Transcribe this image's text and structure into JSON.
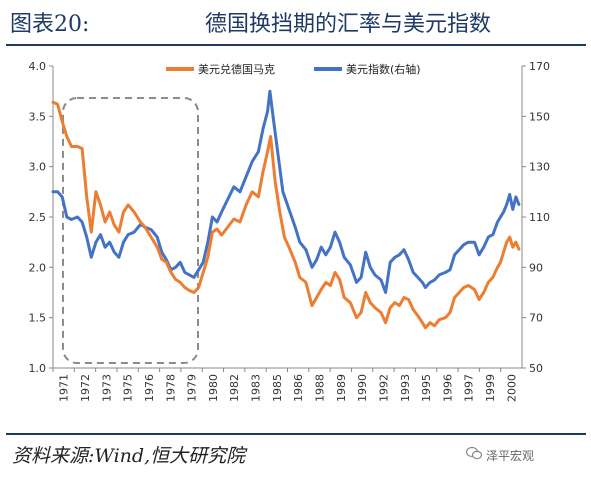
{
  "header": {
    "figure_no": "图表20:",
    "title": "德国换挡期的汇率与美元指数"
  },
  "footer": {
    "source": "资料来源:Wind,恒大研究院",
    "brand": "泽平宏观",
    "brand_icon": "wechat-bubble-icon"
  },
  "chart_data": {
    "type": "line",
    "title": "德国换挡期的汇率与美元指数",
    "x_categories": [
      "1971",
      "1972",
      "1973",
      "1975",
      "1976",
      "1978",
      "1979",
      "1980",
      "1982",
      "1983",
      "1985",
      "1986",
      "1988",
      "1989",
      "1990",
      "1992",
      "1993",
      "1995",
      "1996",
      "1997",
      "1999",
      "2000"
    ],
    "left_axis": {
      "min": 1.0,
      "max": 4.0,
      "ticks": [
        "1.0",
        "1.5",
        "2.0",
        "2.5",
        "3.0",
        "3.5",
        "4.0"
      ]
    },
    "right_axis": {
      "min": 50,
      "max": 170,
      "ticks": [
        "50",
        "70",
        "90",
        "110",
        "130",
        "150",
        "170"
      ]
    },
    "highlight": "dashed box around 1971–1979",
    "colors": {
      "usd_dem": "#ed7d31",
      "dxy": "#4472c4",
      "axis": "#888888",
      "box": "#8c8c8c"
    },
    "series": [
      {
        "name": "美元兑德国马克",
        "axis": "left",
        "points": [
          [
            1971.0,
            3.64
          ],
          [
            1971.3,
            3.62
          ],
          [
            1971.6,
            3.45
          ],
          [
            1971.9,
            3.3
          ],
          [
            1972.2,
            3.2
          ],
          [
            1972.6,
            3.2
          ],
          [
            1972.9,
            3.18
          ],
          [
            1973.2,
            2.7
          ],
          [
            1973.5,
            2.35
          ],
          [
            1973.8,
            2.75
          ],
          [
            1974.1,
            2.62
          ],
          [
            1974.4,
            2.45
          ],
          [
            1974.7,
            2.55
          ],
          [
            1975.0,
            2.42
          ],
          [
            1975.3,
            2.35
          ],
          [
            1975.6,
            2.55
          ],
          [
            1975.9,
            2.62
          ],
          [
            1976.3,
            2.55
          ],
          [
            1976.7,
            2.45
          ],
          [
            1977.0,
            2.4
          ],
          [
            1977.4,
            2.3
          ],
          [
            1977.8,
            2.2
          ],
          [
            1978.1,
            2.08
          ],
          [
            1978.4,
            2.05
          ],
          [
            1978.7,
            1.95
          ],
          [
            1979.0,
            1.88
          ],
          [
            1979.3,
            1.85
          ],
          [
            1979.6,
            1.8
          ],
          [
            1979.9,
            1.77
          ],
          [
            1980.2,
            1.75
          ],
          [
            1980.5,
            1.8
          ],
          [
            1980.8,
            1.95
          ],
          [
            1981.1,
            2.1
          ],
          [
            1981.4,
            2.35
          ],
          [
            1981.7,
            2.38
          ],
          [
            1982.0,
            2.32
          ],
          [
            1982.4,
            2.4
          ],
          [
            1982.8,
            2.48
          ],
          [
            1983.2,
            2.45
          ],
          [
            1983.6,
            2.62
          ],
          [
            1984.0,
            2.75
          ],
          [
            1984.4,
            2.7
          ],
          [
            1984.7,
            2.95
          ],
          [
            1985.0,
            3.15
          ],
          [
            1985.2,
            3.3
          ],
          [
            1985.5,
            2.85
          ],
          [
            1985.8,
            2.55
          ],
          [
            1986.1,
            2.3
          ],
          [
            1986.4,
            2.2
          ],
          [
            1986.8,
            2.05
          ],
          [
            1987.1,
            1.9
          ],
          [
            1987.5,
            1.85
          ],
          [
            1987.9,
            1.62
          ],
          [
            1988.2,
            1.7
          ],
          [
            1988.5,
            1.78
          ],
          [
            1988.8,
            1.85
          ],
          [
            1989.1,
            1.82
          ],
          [
            1989.4,
            1.95
          ],
          [
            1989.7,
            1.88
          ],
          [
            1990.0,
            1.7
          ],
          [
            1990.4,
            1.65
          ],
          [
            1990.8,
            1.5
          ],
          [
            1991.1,
            1.55
          ],
          [
            1991.4,
            1.75
          ],
          [
            1991.7,
            1.65
          ],
          [
            1992.0,
            1.6
          ],
          [
            1992.4,
            1.55
          ],
          [
            1992.7,
            1.45
          ],
          [
            1993.0,
            1.6
          ],
          [
            1993.3,
            1.65
          ],
          [
            1993.6,
            1.62
          ],
          [
            1993.9,
            1.7
          ],
          [
            1994.2,
            1.68
          ],
          [
            1994.5,
            1.58
          ],
          [
            1994.8,
            1.52
          ],
          [
            1995.1,
            1.45
          ],
          [
            1995.3,
            1.4
          ],
          [
            1995.6,
            1.45
          ],
          [
            1995.9,
            1.42
          ],
          [
            1996.2,
            1.48
          ],
          [
            1996.6,
            1.5
          ],
          [
            1996.9,
            1.55
          ],
          [
            1997.2,
            1.7
          ],
          [
            1997.5,
            1.75
          ],
          [
            1997.8,
            1.8
          ],
          [
            1998.1,
            1.82
          ],
          [
            1998.5,
            1.78
          ],
          [
            1998.8,
            1.68
          ],
          [
            1999.1,
            1.75
          ],
          [
            1999.4,
            1.85
          ],
          [
            1999.7,
            1.9
          ],
          [
            2000.0,
            2.0
          ],
          [
            2000.2,
            2.05
          ],
          [
            2000.4,
            2.15
          ],
          [
            2000.6,
            2.25
          ],
          [
            2000.8,
            2.3
          ],
          [
            2001.0,
            2.2
          ],
          [
            2001.2,
            2.25
          ],
          [
            2001.4,
            2.18
          ]
        ]
      },
      {
        "name": "美元指数(右轴)",
        "axis": "right",
        "points": [
          [
            1971.0,
            120
          ],
          [
            1971.3,
            120
          ],
          [
            1971.6,
            118
          ],
          [
            1971.9,
            110
          ],
          [
            1972.2,
            109
          ],
          [
            1972.6,
            110
          ],
          [
            1972.9,
            108
          ],
          [
            1973.2,
            102
          ],
          [
            1973.5,
            94
          ],
          [
            1973.8,
            100
          ],
          [
            1974.1,
            103
          ],
          [
            1974.4,
            98
          ],
          [
            1974.7,
            100
          ],
          [
            1975.0,
            96
          ],
          [
            1975.3,
            94
          ],
          [
            1975.6,
            100
          ],
          [
            1975.9,
            103
          ],
          [
            1976.3,
            104
          ],
          [
            1976.7,
            107
          ],
          [
            1977.0,
            106
          ],
          [
            1977.4,
            105
          ],
          [
            1977.8,
            102
          ],
          [
            1978.1,
            96
          ],
          [
            1978.4,
            93
          ],
          [
            1978.7,
            89
          ],
          [
            1979.0,
            90
          ],
          [
            1979.3,
            92
          ],
          [
            1979.6,
            88
          ],
          [
            1979.9,
            87
          ],
          [
            1980.2,
            86
          ],
          [
            1980.5,
            89
          ],
          [
            1980.8,
            92
          ],
          [
            1981.1,
            100
          ],
          [
            1981.4,
            110
          ],
          [
            1981.7,
            108
          ],
          [
            1982.0,
            112
          ],
          [
            1982.4,
            117
          ],
          [
            1982.8,
            122
          ],
          [
            1983.2,
            120
          ],
          [
            1983.6,
            126
          ],
          [
            1984.0,
            132
          ],
          [
            1984.4,
            136
          ],
          [
            1984.7,
            145
          ],
          [
            1985.0,
            152
          ],
          [
            1985.15,
            160
          ],
          [
            1985.4,
            148
          ],
          [
            1985.7,
            134
          ],
          [
            1986.0,
            120
          ],
          [
            1986.4,
            113
          ],
          [
            1986.8,
            106
          ],
          [
            1987.1,
            100
          ],
          [
            1987.5,
            97
          ],
          [
            1987.9,
            90
          ],
          [
            1988.2,
            93
          ],
          [
            1988.5,
            98
          ],
          [
            1988.8,
            95
          ],
          [
            1989.1,
            98
          ],
          [
            1989.4,
            104
          ],
          [
            1989.7,
            100
          ],
          [
            1990.0,
            94
          ],
          [
            1990.4,
            91
          ],
          [
            1990.8,
            84
          ],
          [
            1991.1,
            86
          ],
          [
            1991.4,
            96
          ],
          [
            1991.7,
            90
          ],
          [
            1992.0,
            87
          ],
          [
            1992.4,
            85
          ],
          [
            1992.7,
            80
          ],
          [
            1993.0,
            92
          ],
          [
            1993.3,
            94
          ],
          [
            1993.6,
            95
          ],
          [
            1993.9,
            97
          ],
          [
            1994.2,
            93
          ],
          [
            1994.5,
            88
          ],
          [
            1994.8,
            86
          ],
          [
            1995.1,
            84
          ],
          [
            1995.3,
            82
          ],
          [
            1995.6,
            84
          ],
          [
            1995.9,
            85
          ],
          [
            1996.2,
            87
          ],
          [
            1996.6,
            88
          ],
          [
            1996.9,
            89
          ],
          [
            1997.2,
            95
          ],
          [
            1997.5,
            97
          ],
          [
            1997.8,
            99
          ],
          [
            1998.1,
            100
          ],
          [
            1998.5,
            100
          ],
          [
            1998.8,
            95
          ],
          [
            1999.1,
            98
          ],
          [
            1999.4,
            102
          ],
          [
            1999.7,
            103
          ],
          [
            2000.0,
            108
          ],
          [
            2000.2,
            110
          ],
          [
            2000.4,
            112
          ],
          [
            2000.6,
            115
          ],
          [
            2000.8,
            119
          ],
          [
            2001.0,
            113
          ],
          [
            2001.2,
            118
          ],
          [
            2001.4,
            115
          ]
        ]
      }
    ]
  }
}
